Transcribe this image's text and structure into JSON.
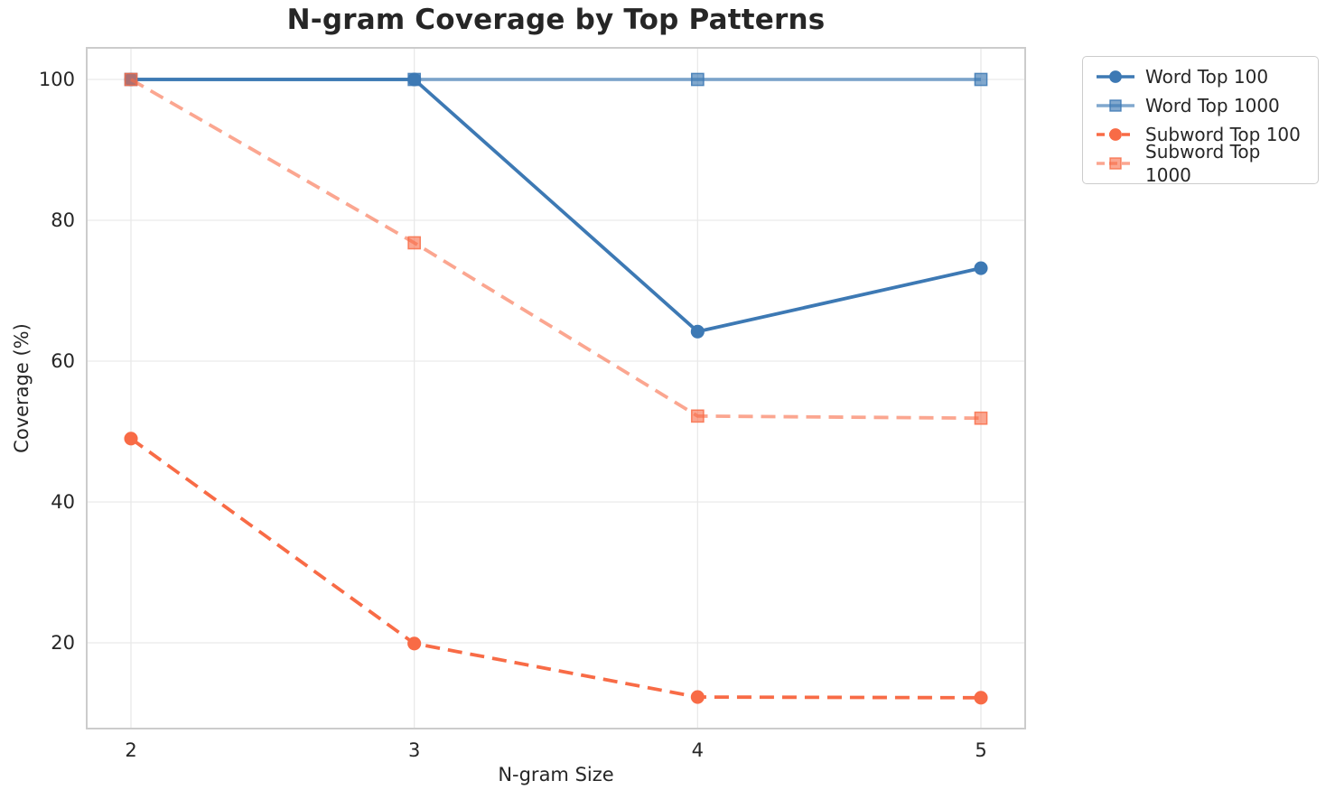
{
  "chart_data": {
    "type": "line",
    "title": "N-gram Coverage by Top Patterns",
    "xlabel": "N-gram Size",
    "ylabel": "Coverage (%)",
    "x": [
      2,
      3,
      4,
      5
    ],
    "xtick_labels": [
      "2",
      "3",
      "4",
      "5"
    ],
    "yticks": [
      20,
      40,
      60,
      80,
      100
    ],
    "xlim": [
      1.84,
      5.16
    ],
    "ylim": [
      7.8,
      104.5
    ],
    "grid": true,
    "legend_position": "outside-top-right",
    "series": [
      {
        "name": "Word Top 100",
        "values": [
          100,
          100,
          64.2,
          73.2
        ],
        "color": "#3d79b4",
        "alpha": 1.0,
        "marker": "circle",
        "dash": false
      },
      {
        "name": "Word Top 1000",
        "values": [
          100,
          100,
          100,
          100
        ],
        "color": "#3d79b4",
        "alpha": 0.65,
        "marker": "square",
        "dash": false
      },
      {
        "name": "Subword Top 100",
        "values": [
          49,
          19.9,
          12.3,
          12.2
        ],
        "color": "#f86b46",
        "alpha": 1.0,
        "marker": "circle",
        "dash": true
      },
      {
        "name": "Subword Top 1000",
        "values": [
          100,
          76.8,
          52.2,
          51.9
        ],
        "color": "#f86b46",
        "alpha": 0.6,
        "marker": "square",
        "dash": true
      }
    ],
    "colors": {
      "text": "#262626",
      "grid": "#e9e9e9",
      "spine": "#cccccc",
      "background": "#ffffff"
    }
  }
}
